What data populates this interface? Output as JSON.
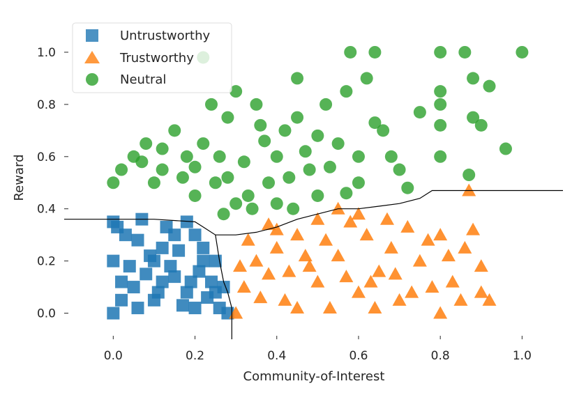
{
  "chart_data": {
    "type": "scatter",
    "title": "",
    "xlabel": "Community-of-Interest",
    "ylabel": "Reward",
    "xlim": [
      -0.12,
      1.1
    ],
    "ylim": [
      -0.1,
      1.08
    ],
    "xticks": [
      0.0,
      0.2,
      0.4,
      0.6,
      0.8,
      1.0
    ],
    "xtick_labels": [
      "0.0",
      "0.2",
      "0.4",
      "0.6",
      "0.8",
      "1.0"
    ],
    "yticks": [
      0.0,
      0.2,
      0.4,
      0.6,
      0.8,
      1.0
    ],
    "ytick_labels": [
      "0.0",
      "0.2",
      "0.4",
      "0.6",
      "0.8",
      "1.0"
    ],
    "grid": false,
    "legend_position": "top-left",
    "legend": [
      "Untrustworthy",
      "Trustworthy",
      "Neutral"
    ],
    "colors": {
      "untrustworthy": "#1f77b4",
      "trustworthy": "#ff7f0e",
      "neutral": "#2ca02c",
      "boundary": "#000000"
    },
    "series": [
      {
        "name": "Untrustworthy",
        "marker": "square",
        "points": [
          [
            0.0,
            0.0
          ],
          [
            0.02,
            0.05
          ],
          [
            0.05,
            0.1
          ],
          [
            0.08,
            0.15
          ],
          [
            0.1,
            0.2
          ],
          [
            0.12,
            0.25
          ],
          [
            0.15,
            0.3
          ],
          [
            0.18,
            0.35
          ],
          [
            0.2,
            0.3
          ],
          [
            0.22,
            0.25
          ],
          [
            0.25,
            0.2
          ],
          [
            0.27,
            0.1
          ],
          [
            0.28,
            0.0
          ],
          [
            0.01,
            0.33
          ],
          [
            0.03,
            0.3
          ],
          [
            0.06,
            0.28
          ],
          [
            0.09,
            0.22
          ],
          [
            0.14,
            0.18
          ],
          [
            0.19,
            0.12
          ],
          [
            0.23,
            0.06
          ],
          [
            0.26,
            0.02
          ],
          [
            0.04,
            0.18
          ],
          [
            0.11,
            0.08
          ],
          [
            0.17,
            0.03
          ],
          [
            0.21,
            0.16
          ],
          [
            0.13,
            0.33
          ],
          [
            0.07,
            0.36
          ],
          [
            0.0,
            0.35
          ],
          [
            0.0,
            0.2
          ],
          [
            0.24,
            0.12
          ],
          [
            0.16,
            0.24
          ],
          [
            0.02,
            0.12
          ],
          [
            0.18,
            0.08
          ],
          [
            0.1,
            0.05
          ],
          [
            0.22,
            0.2
          ],
          [
            0.06,
            0.02
          ],
          [
            0.15,
            0.14
          ],
          [
            0.25,
            0.08
          ],
          [
            0.2,
            0.02
          ],
          [
            0.12,
            0.12
          ]
        ]
      },
      {
        "name": "Trustworthy",
        "marker": "triangle",
        "points": [
          [
            0.3,
            0.0
          ],
          [
            0.32,
            0.1
          ],
          [
            0.35,
            0.2
          ],
          [
            0.38,
            0.15
          ],
          [
            0.4,
            0.25
          ],
          [
            0.42,
            0.05
          ],
          [
            0.45,
            0.3
          ],
          [
            0.48,
            0.18
          ],
          [
            0.5,
            0.12
          ],
          [
            0.52,
            0.28
          ],
          [
            0.55,
            0.22
          ],
          [
            0.58,
            0.35
          ],
          [
            0.6,
            0.08
          ],
          [
            0.62,
            0.3
          ],
          [
            0.65,
            0.16
          ],
          [
            0.68,
            0.25
          ],
          [
            0.7,
            0.05
          ],
          [
            0.72,
            0.33
          ],
          [
            0.75,
            0.2
          ],
          [
            0.78,
            0.1
          ],
          [
            0.8,
            0.3
          ],
          [
            0.82,
            0.22
          ],
          [
            0.85,
            0.05
          ],
          [
            0.87,
            0.47
          ],
          [
            0.88,
            0.32
          ],
          [
            0.9,
            0.18
          ],
          [
            0.92,
            0.05
          ],
          [
            0.6,
            0.38
          ],
          [
            0.55,
            0.4
          ],
          [
            0.5,
            0.36
          ],
          [
            0.45,
            0.02
          ],
          [
            0.4,
            0.32
          ],
          [
            0.36,
            0.06
          ],
          [
            0.33,
            0.28
          ],
          [
            0.47,
            0.22
          ],
          [
            0.53,
            0.02
          ],
          [
            0.63,
            0.12
          ],
          [
            0.67,
            0.36
          ],
          [
            0.73,
            0.08
          ],
          [
            0.77,
            0.28
          ],
          [
            0.83,
            0.12
          ],
          [
            0.86,
            0.25
          ],
          [
            0.57,
            0.14
          ],
          [
            0.43,
            0.16
          ],
          [
            0.38,
            0.34
          ],
          [
            0.31,
            0.18
          ],
          [
            0.64,
            0.02
          ],
          [
            0.69,
            0.15
          ],
          [
            0.8,
            0.0
          ],
          [
            0.9,
            0.08
          ]
        ]
      },
      {
        "name": "Neutral",
        "marker": "circle",
        "points": [
          [
            0.0,
            0.5
          ],
          [
            0.02,
            0.55
          ],
          [
            0.05,
            0.6
          ],
          [
            0.08,
            0.65
          ],
          [
            0.1,
            0.5
          ],
          [
            0.12,
            0.55
          ],
          [
            0.15,
            0.7
          ],
          [
            0.18,
            0.6
          ],
          [
            0.2,
            0.45
          ],
          [
            0.22,
            0.65
          ],
          [
            0.25,
            0.5
          ],
          [
            0.28,
            0.75
          ],
          [
            0.3,
            0.42
          ],
          [
            0.32,
            0.58
          ],
          [
            0.35,
            0.8
          ],
          [
            0.38,
            0.5
          ],
          [
            0.4,
            0.6
          ],
          [
            0.42,
            0.7
          ],
          [
            0.45,
            0.9
          ],
          [
            0.48,
            0.55
          ],
          [
            0.5,
            0.45
          ],
          [
            0.52,
            0.8
          ],
          [
            0.55,
            0.65
          ],
          [
            0.58,
            1.0
          ],
          [
            0.6,
            0.5
          ],
          [
            0.62,
            0.9
          ],
          [
            0.64,
            1.0
          ],
          [
            0.66,
            0.7
          ],
          [
            0.68,
            0.6
          ],
          [
            0.7,
            0.55
          ],
          [
            0.72,
            0.48
          ],
          [
            0.75,
            0.77
          ],
          [
            0.8,
            1.0
          ],
          [
            0.8,
            0.85
          ],
          [
            0.8,
            0.72
          ],
          [
            0.8,
            0.6
          ],
          [
            0.86,
            1.0
          ],
          [
            0.87,
            0.53
          ],
          [
            0.88,
            0.9
          ],
          [
            0.88,
            0.75
          ],
          [
            0.9,
            0.72
          ],
          [
            0.92,
            0.87
          ],
          [
            0.96,
            0.63
          ],
          [
            1.0,
            1.0
          ],
          [
            0.22,
            0.98
          ],
          [
            0.27,
            0.38
          ],
          [
            0.33,
            0.45
          ],
          [
            0.37,
            0.66
          ],
          [
            0.43,
            0.52
          ],
          [
            0.47,
            0.62
          ],
          [
            0.53,
            0.56
          ],
          [
            0.57,
            0.46
          ],
          [
            0.6,
            0.6
          ],
          [
            0.24,
            0.8
          ],
          [
            0.3,
            0.85
          ],
          [
            0.17,
            0.52
          ],
          [
            0.4,
            0.42
          ],
          [
            0.36,
            0.72
          ],
          [
            0.26,
            0.6
          ],
          [
            0.45,
            0.75
          ],
          [
            0.5,
            0.68
          ],
          [
            0.12,
            0.63
          ],
          [
            0.07,
            0.58
          ],
          [
            0.44,
            0.4
          ],
          [
            0.34,
            0.4
          ],
          [
            0.64,
            0.73
          ],
          [
            0.57,
            0.85
          ],
          [
            0.8,
            0.8
          ],
          [
            0.2,
            0.56
          ],
          [
            0.28,
            0.52
          ]
        ]
      }
    ],
    "decision_boundary": [
      [
        -0.12,
        0.36
      ],
      [
        0.0,
        0.36
      ],
      [
        0.1,
        0.36
      ],
      [
        0.2,
        0.35
      ],
      [
        0.22,
        0.33
      ],
      [
        0.25,
        0.3
      ],
      [
        0.3,
        0.3
      ],
      [
        0.35,
        0.31
      ],
      [
        0.4,
        0.33
      ],
      [
        0.45,
        0.36
      ],
      [
        0.5,
        0.38
      ],
      [
        0.55,
        0.4
      ],
      [
        0.6,
        0.4
      ],
      [
        0.65,
        0.41
      ],
      [
        0.7,
        0.42
      ],
      [
        0.75,
        0.44
      ],
      [
        0.78,
        0.47
      ],
      [
        1.1,
        0.47
      ]
    ],
    "boundary_lower": [
      [
        0.25,
        0.3
      ],
      [
        0.26,
        0.2
      ],
      [
        0.27,
        0.12
      ],
      [
        0.28,
        0.08
      ],
      [
        0.29,
        0.02
      ],
      [
        0.29,
        -0.1
      ]
    ]
  }
}
